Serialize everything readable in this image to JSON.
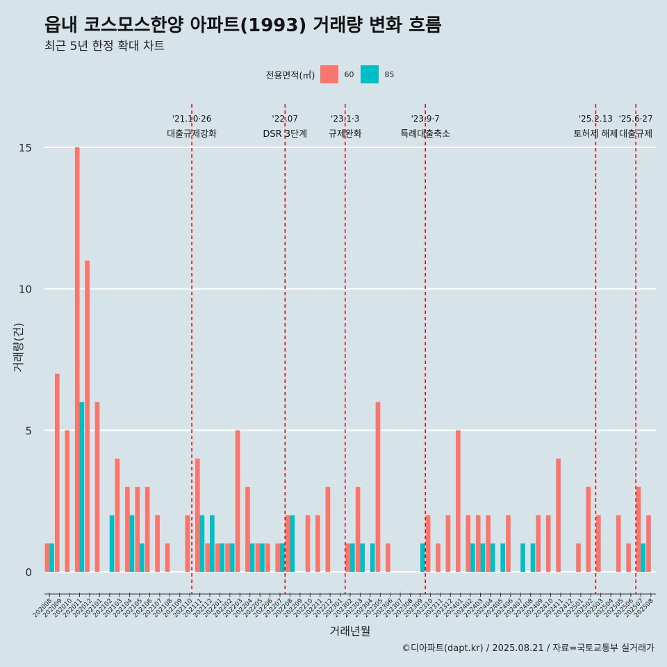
{
  "title": "읍내 코스모스한양 아파트(1993) 거래량 변화 흐름",
  "subtitle": "최근 5년 한정 확대 차트",
  "caption": "©디아파트(dapt.kr) / 2025.08.21 / 자료=국토교통부 실거래가",
  "legend": {
    "title": "전용면적(㎡)",
    "items": [
      {
        "label": "60",
        "color": "#f8766d"
      },
      {
        "label": "85",
        "color": "#00bfc4"
      }
    ]
  },
  "chart_data": {
    "type": "bar",
    "xlabel": "거래년월",
    "ylabel": "거래량(건)",
    "ylim": [
      0,
      15
    ],
    "yticks": [
      0,
      5,
      10,
      15
    ],
    "grid": true,
    "legend_position": "top",
    "categories": [
      "202008",
      "202009",
      "202010",
      "202011",
      "202012",
      "202101",
      "202102",
      "202103",
      "202104",
      "202105",
      "202106",
      "202107",
      "202108",
      "202109",
      "202110",
      "202111",
      "202112",
      "202201",
      "202202",
      "202203",
      "202204",
      "202205",
      "202206",
      "202207",
      "202208",
      "202209",
      "202210",
      "202211",
      "202212",
      "202301",
      "202302",
      "202303",
      "202304",
      "202305",
      "202306",
      "202307",
      "202308",
      "202309",
      "202310",
      "202311",
      "202312",
      "202401",
      "202402",
      "202403",
      "202404",
      "202405",
      "202406",
      "202407",
      "202408",
      "202409",
      "202410",
      "202411",
      "202412",
      "202501",
      "202502",
      "202503",
      "202504",
      "202505",
      "202506",
      "202507",
      "202508"
    ],
    "series": [
      {
        "name": "60",
        "color": "#f8766d",
        "values": [
          1,
          7,
          5,
          15,
          11,
          6,
          0,
          4,
          3,
          3,
          3,
          2,
          1,
          0,
          2,
          4,
          1,
          1,
          1,
          5,
          3,
          1,
          1,
          1,
          2,
          0,
          2,
          2,
          3,
          0,
          1,
          3,
          0,
          6,
          1,
          0,
          0,
          0,
          2,
          1,
          2,
          5,
          2,
          2,
          2,
          0,
          2,
          0,
          0,
          2,
          2,
          4,
          0,
          1,
          3,
          2,
          0,
          2,
          1,
          3,
          2
        ]
      },
      {
        "name": "85",
        "color": "#00bfc4",
        "values": [
          1,
          0,
          0,
          6,
          0,
          0,
          2,
          0,
          2,
          1,
          0,
          0,
          0,
          0,
          0,
          2,
          2,
          1,
          1,
          0,
          1,
          1,
          0,
          1,
          2,
          0,
          0,
          0,
          0,
          0,
          1,
          1,
          1,
          0,
          0,
          0,
          0,
          1,
          0,
          0,
          0,
          0,
          1,
          1,
          1,
          1,
          0,
          1,
          1,
          0,
          0,
          0,
          0,
          0,
          0,
          0,
          0,
          0,
          0,
          1,
          0
        ]
      }
    ],
    "events": [
      {
        "index": 14.2,
        "date": "'21.10·26",
        "label": "대출규제강화"
      },
      {
        "index": 23.5,
        "date": "'22.07",
        "label": "DSR 3단계"
      },
      {
        "index": 29.5,
        "date": "'23.1·3",
        "label": "규제완화"
      },
      {
        "index": 37.5,
        "date": "'23.9·7",
        "label": "특례대출축소"
      },
      {
        "index": 54.5,
        "date": "'25.2.13",
        "label": "토허제 해제"
      },
      {
        "index": 58.5,
        "date": "'25.6·27",
        "label": "대출규제"
      }
    ]
  }
}
